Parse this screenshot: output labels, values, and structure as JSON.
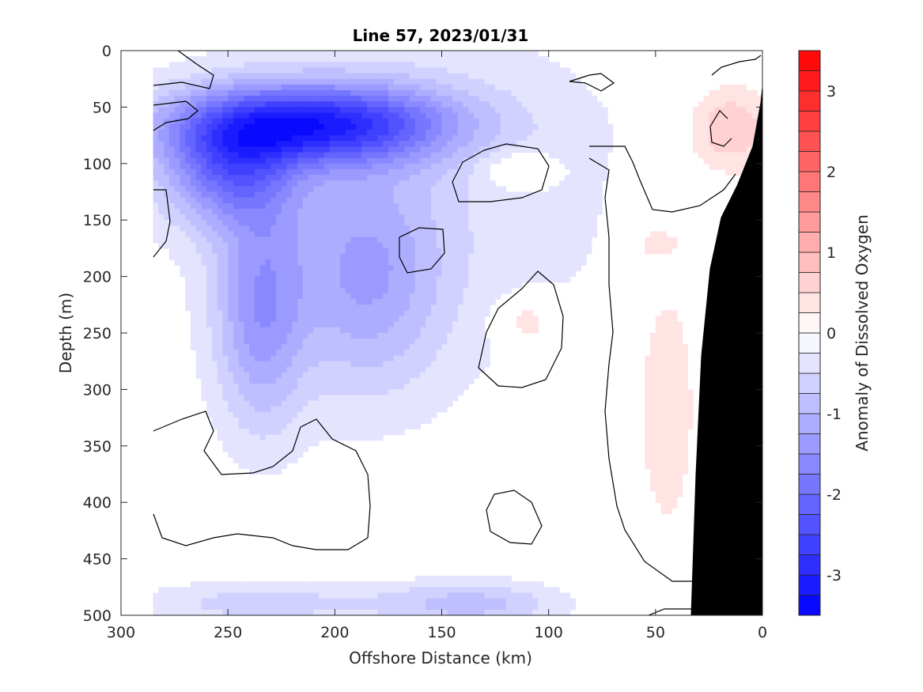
{
  "chart_data": {
    "type": "heatmap",
    "title": "Line 57, 2023/01/31",
    "xlabel": "Offshore Distance (km)",
    "ylabel": "Depth (m)",
    "colorbar_label": "Anomaly of Dissolved Oxygen",
    "xlim": [
      300,
      0
    ],
    "ylim": [
      500,
      0
    ],
    "x_reversed": true,
    "y_reversed": true,
    "xticks": [
      "300",
      "250",
      "200",
      "150",
      "100",
      "50",
      "0"
    ],
    "yticks": [
      "0",
      "50",
      "100",
      "150",
      "200",
      "250",
      "300",
      "350",
      "400",
      "450",
      "500"
    ],
    "colorbar_range": [
      -3.5,
      3.5
    ],
    "colorbar_ticks": [
      "3",
      "2",
      "1",
      "0",
      "-1",
      "-2",
      "-3"
    ],
    "colorbar_levels": 28,
    "colormap_low": "#0000ff",
    "colormap_mid": "#ffffff",
    "colormap_high": "#ff0000",
    "bathymetry_color": "#000000",
    "contour_level": 0,
    "anomaly_features": [
      {
        "x": 210,
        "y": 65,
        "value": -2.7,
        "sx": 45,
        "sy": 25
      },
      {
        "x": 250,
        "y": 105,
        "value": -1.6,
        "sx": 22,
        "sy": 35
      },
      {
        "x": 235,
        "y": 230,
        "value": -1.2,
        "sx": 15,
        "sy": 75
      },
      {
        "x": 185,
        "y": 200,
        "value": -1.0,
        "sx": 25,
        "sy": 70
      },
      {
        "x": 135,
        "y": 490,
        "value": -0.8,
        "sx": 30,
        "sy": 15
      },
      {
        "x": 235,
        "y": 490,
        "value": -0.6,
        "sx": 45,
        "sy": 15
      },
      {
        "x": 160,
        "y": 120,
        "value": -0.4,
        "sx": 90,
        "sy": 150
      },
      {
        "x": 115,
        "y": 105,
        "value": 0.5,
        "sx": 12,
        "sy": 12
      },
      {
        "x": 110,
        "y": 240,
        "value": 0.6,
        "sx": 10,
        "sy": 15
      },
      {
        "x": 15,
        "y": 70,
        "value": 0.8,
        "sx": 15,
        "sy": 30
      },
      {
        "x": 50,
        "y": 170,
        "value": 0.4,
        "sx": 8,
        "sy": 10
      },
      {
        "x": 45,
        "y": 300,
        "value": 0.5,
        "sx": 12,
        "sy": 100
      }
    ]
  }
}
